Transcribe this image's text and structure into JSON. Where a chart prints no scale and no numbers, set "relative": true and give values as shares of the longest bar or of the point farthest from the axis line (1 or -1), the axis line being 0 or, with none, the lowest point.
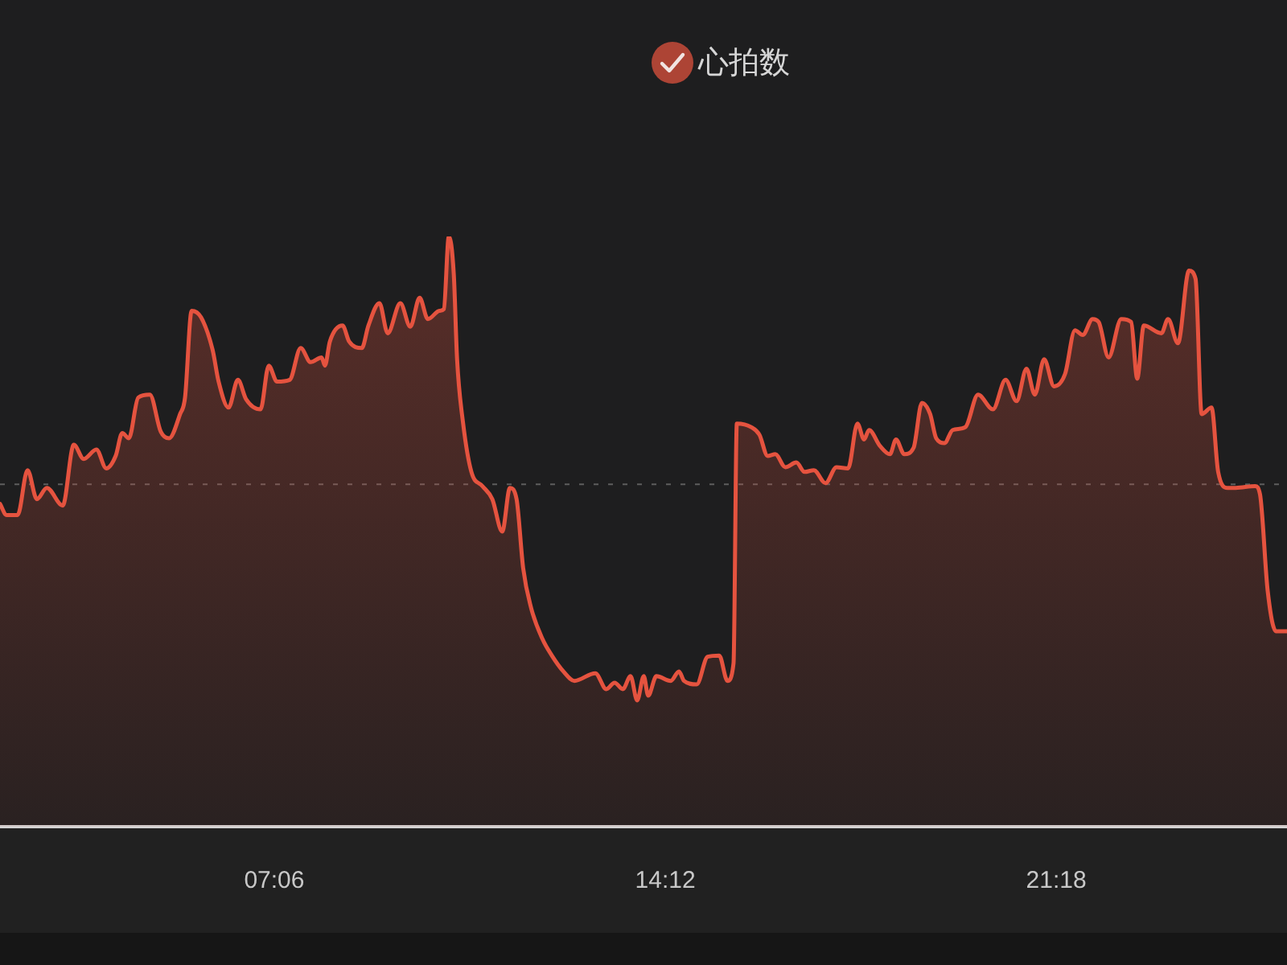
{
  "chart_data": {
    "type": "area",
    "legend": "top",
    "marker": "none",
    "relative": true,
    "xlim": [
      2.12,
      25.49
    ],
    "xticks": [
      {
        "value": 7.1,
        "label": "07:06"
      },
      {
        "value": 14.2,
        "label": "14:12"
      },
      {
        "value": 21.3,
        "label": "21:18"
      }
    ],
    "ref_lines": [
      {
        "axis": "y",
        "value": 0.58,
        "color": "#5e5e5e",
        "line_style": "dashed"
      }
    ],
    "x": [
      2.12,
      2.24,
      2.44,
      2.62,
      2.79,
      2.97,
      3.26,
      3.46,
      3.64,
      3.87,
      4.05,
      4.22,
      4.34,
      4.46,
      4.63,
      4.84,
      5.04,
      5.19,
      5.39,
      5.48,
      5.6,
      5.77,
      5.98,
      6.09,
      6.27,
      6.44,
      6.59,
      6.85,
      7.0,
      7.15,
      7.38,
      7.58,
      7.76,
      7.96,
      8.02,
      8.11,
      8.34,
      8.46,
      8.69,
      8.81,
      9.01,
      9.16,
      9.39,
      9.57,
      9.74,
      9.89,
      10.1,
      10.18,
      10.27,
      10.36,
      10.42,
      10.53,
      10.68,
      10.88,
      11.06,
      11.24,
      11.38,
      11.5,
      11.62,
      11.76,
      11.97,
      12.14,
      12.35,
      12.55,
      12.93,
      13.13,
      13.28,
      13.43,
      13.57,
      13.69,
      13.81,
      13.89,
      14.04,
      14.3,
      14.45,
      14.54,
      14.77,
      14.97,
      15.18,
      15.33,
      15.44,
      15.5,
      15.76,
      15.91,
      16.06,
      16.2,
      16.38,
      16.58,
      16.73,
      16.9,
      17.11,
      17.31,
      17.52,
      17.69,
      17.81,
      17.9,
      18.1,
      18.28,
      18.39,
      18.54,
      18.71,
      18.86,
      19.01,
      19.12,
      19.27,
      19.42,
      19.65,
      19.88,
      20.15,
      20.38,
      20.58,
      20.76,
      20.91,
      21.08,
      21.26,
      21.46,
      21.64,
      21.78,
      21.96,
      22.07,
      22.25,
      22.48,
      22.66,
      22.77,
      22.89,
      23.21,
      23.33,
      23.51,
      23.71,
      23.83,
      23.94,
      24.12,
      24.24,
      24.41,
      24.56,
      24.91,
      25.0,
      25.14,
      25.29,
      25.49
    ],
    "series": [
      {
        "name": "心拍数",
        "color": "#e5533f",
        "values": [
          0.547,
          0.528,
          0.528,
          0.604,
          0.555,
          0.574,
          0.544,
          0.647,
          0.623,
          0.639,
          0.607,
          0.628,
          0.667,
          0.658,
          0.727,
          0.732,
          0.669,
          0.658,
          0.699,
          0.727,
          0.874,
          0.863,
          0.808,
          0.754,
          0.71,
          0.757,
          0.724,
          0.707,
          0.781,
          0.754,
          0.757,
          0.811,
          0.787,
          0.795,
          0.781,
          0.822,
          0.849,
          0.822,
          0.811,
          0.849,
          0.887,
          0.836,
          0.887,
          0.847,
          0.896,
          0.86,
          0.874,
          0.877,
          1,
          0.936,
          0.792,
          0.683,
          0.601,
          0.577,
          0.555,
          0.5,
          0.574,
          0.555,
          0.438,
          0.372,
          0.318,
          0.29,
          0.263,
          0.247,
          0.26,
          0.233,
          0.244,
          0.233,
          0.255,
          0.214,
          0.255,
          0.222,
          0.255,
          0.247,
          0.263,
          0.247,
          0.241,
          0.288,
          0.29,
          0.247,
          0.277,
          0.683,
          0.677,
          0.664,
          0.628,
          0.631,
          0.609,
          0.617,
          0.601,
          0.604,
          0.582,
          0.609,
          0.607,
          0.683,
          0.656,
          0.672,
          0.645,
          0.631,
          0.656,
          0.631,
          0.642,
          0.718,
          0.699,
          0.658,
          0.65,
          0.672,
          0.677,
          0.732,
          0.707,
          0.757,
          0.721,
          0.776,
          0.732,
          0.792,
          0.746,
          0.767,
          0.841,
          0.833,
          0.86,
          0.855,
          0.795,
          0.86,
          0.855,
          0.759,
          0.849,
          0.836,
          0.86,
          0.819,
          0.942,
          0.928,
          0.699,
          0.71,
          0.601,
          0.574,
          0.574,
          0.577,
          0.563,
          0.399,
          0.331,
          0.331
        ]
      }
    ]
  }
}
